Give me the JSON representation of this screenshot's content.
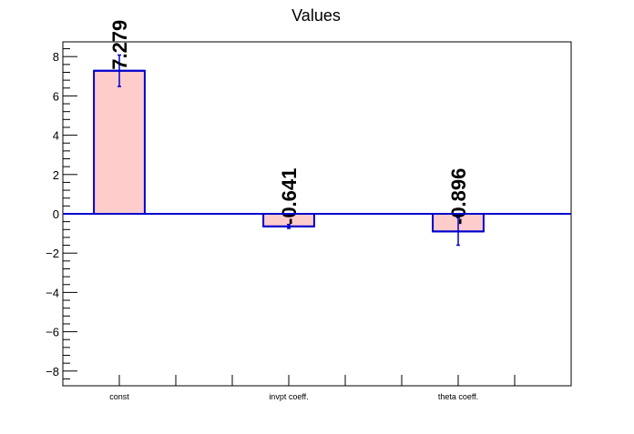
{
  "chart_data": {
    "type": "bar",
    "title": "Values",
    "categories": [
      "const",
      "invpt coeff.",
      "theta coeff."
    ],
    "values": [
      7.279,
      -0.641,
      -0.896
    ],
    "errors": [
      0.8,
      0.1,
      0.7
    ],
    "data_labels": [
      "7.279",
      "-0.641",
      "-0.896"
    ],
    "ylim": [
      -8.75,
      8.75
    ],
    "yticks": [
      -8,
      -6,
      -4,
      -2,
      0,
      2,
      4,
      6,
      8
    ],
    "ytick_labels": [
      "−8",
      "−6",
      "−4",
      "−2",
      "0",
      "2",
      "4",
      "6",
      "8"
    ],
    "grid": false,
    "xlabel": "",
    "ylabel": ""
  },
  "colors": {
    "bar_fill": "#ffcccc",
    "bar_edge": "#0000cc",
    "axis": "#000000",
    "background": "#ffffff"
  }
}
